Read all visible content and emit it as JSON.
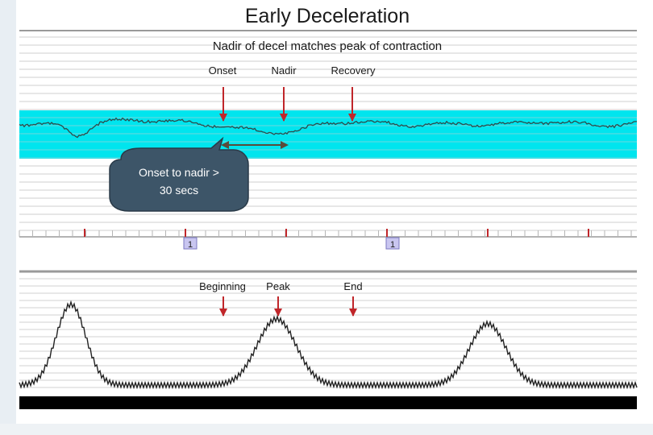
{
  "title": "Early Deceleration",
  "subtitle": "Nadir of decel matches peak of contraction",
  "fhr_labels": {
    "onset": "Onset",
    "nadir": "Nadir",
    "recovery": "Recovery"
  },
  "callout_text": [
    "Onset to nadir >",
    "30 secs"
  ],
  "marker_label": "1",
  "uc_labels": {
    "beginning": "Beginning",
    "peak": "Peak",
    "end": "End"
  },
  "colors": {
    "baseline_band": "#00e5ee",
    "arrow": "#c0262a",
    "callout_fill": "#3d5568",
    "grid": "#c9c9c9",
    "marker_box": "#b9b6ea"
  }
}
